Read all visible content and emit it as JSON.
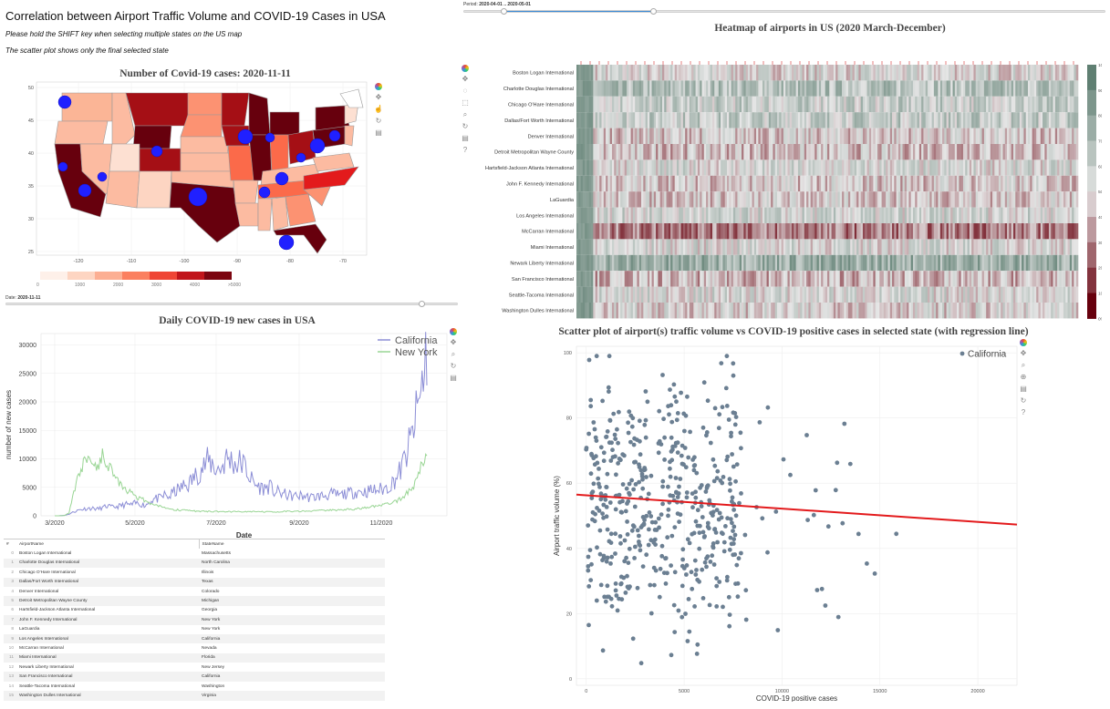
{
  "header": {
    "title": "Correlation between Airport Traffic Volume and COVID-19 Cases in USA",
    "note1": "Please hold the SHIFT key when selecting multiple states on the US map",
    "note2": "The scatter plot shows only the final selected state"
  },
  "map": {
    "title": "Number of Covid-19 cases: 2020-11-11",
    "lat_ticks": [
      "50",
      "45",
      "40",
      "35",
      "30",
      "25"
    ],
    "lon_ticks": [
      "-120",
      "-110",
      "-100",
      "-90",
      "-80",
      "-70"
    ],
    "colorbar_ticks": [
      "0",
      "1000",
      "2000",
      "3000",
      "4000",
      ">5000"
    ],
    "colorbar_colors": [
      "#fef0e9",
      "#fdd5c2",
      "#fcaf93",
      "#fb8060",
      "#ef4535",
      "#c1151b",
      "#7c0510"
    ],
    "date_label": "Date:",
    "date_value": "2020-11-11",
    "date_slider_fraction": 0.92
  },
  "period": {
    "label": "Period:",
    "value": "2020-04-01 .. 2020-05-01"
  },
  "daily": {
    "chart_data": {
      "type": "line",
      "title": "Daily COVID-19 new cases in USA",
      "xlabel": "Date",
      "ylabel": "number of new cases",
      "ylim": [
        0,
        32000
      ],
      "y_ticks": [
        "0",
        "5000",
        "10000",
        "15000",
        "20000",
        "25000",
        "30000"
      ],
      "x_ticks": [
        "3/2020",
        "5/2020",
        "7/2020",
        "9/2020",
        "11/2020"
      ],
      "legend_position": "top-right",
      "series": [
        {
          "name": "California",
          "color": "#8c8ed6",
          "values": [
            0,
            10,
            80,
            300,
            700,
            1000,
            1200,
            1300,
            1300,
            1200,
            1400,
            1700,
            1500,
            1600,
            1800,
            2000,
            1900,
            2200,
            2100,
            1800,
            2600,
            3000,
            3000,
            3600,
            3300,
            4200,
            4600,
            5200,
            5500,
            6500,
            7500,
            8500,
            9500,
            9200,
            8000,
            8600,
            10000,
            9800,
            9000,
            9500,
            8500,
            6600,
            5500,
            5000,
            4800,
            5200,
            4200,
            4100,
            3800,
            3600,
            3400,
            3500,
            3500,
            3300,
            3200,
            3400,
            3500,
            3600,
            3800,
            3700,
            3600,
            3900,
            4000,
            4200,
            4300,
            4200,
            4400,
            4500,
            4600,
            4700,
            5200,
            6000,
            7200,
            9000,
            11500,
            14500,
            18500,
            23000,
            29500
          ]
        },
        {
          "name": "New York",
          "color": "#99d594",
          "values": [
            0,
            0,
            50,
            500,
            4000,
            7000,
            9500,
            10000,
            9500,
            8500,
            10500,
            9500,
            8000,
            6500,
            5500,
            4500,
            4000,
            3500,
            3000,
            2800,
            2200,
            2000,
            1600,
            1400,
            1200,
            1100,
            1000,
            950,
            900,
            850,
            800,
            800,
            780,
            760,
            750,
            730,
            720,
            700,
            720,
            700,
            690,
            700,
            710,
            700,
            690,
            700,
            720,
            730,
            760,
            800,
            780,
            800,
            820,
            850,
            870,
            900,
            930,
            950,
            1000,
            1000,
            1050,
            1100,
            1150,
            1200,
            1300,
            1400,
            1500,
            1600,
            1700,
            1900,
            2100,
            2300,
            2700,
            3200,
            4200,
            5000,
            6500,
            9000,
            10500
          ]
        }
      ]
    }
  },
  "table": {
    "columns": [
      "#",
      "AirportName",
      "StateName"
    ],
    "rows": [
      [
        "0",
        "Boston Logan International",
        "Massachusetts"
      ],
      [
        "1",
        "Charlotte Douglas International",
        "North Carolina"
      ],
      [
        "2",
        "Chicago O'Hare International",
        "Illinois"
      ],
      [
        "3",
        "Dallas/Fort Worth International",
        "Texas"
      ],
      [
        "4",
        "Denver International",
        "Colorado"
      ],
      [
        "5",
        "Detroit Metropolitan Wayne County",
        "Michigan"
      ],
      [
        "6",
        "Hartsfield-Jackson Atlanta International",
        "Georgia"
      ],
      [
        "7",
        "John F. Kennedy International",
        "New York"
      ],
      [
        "8",
        "LaGuardia",
        "New York"
      ],
      [
        "9",
        "Los Angeles International",
        "California"
      ],
      [
        "10",
        "McCarran International",
        "Nevada"
      ],
      [
        "11",
        "Miami International",
        "Florida"
      ],
      [
        "12",
        "Newark Liberty International",
        "New Jersey"
      ],
      [
        "13",
        "San Francisco International",
        "California"
      ],
      [
        "14",
        "Seattle-Tacoma International",
        "Washington"
      ],
      [
        "15",
        "Washington Dulles International",
        "Virginia"
      ]
    ]
  },
  "heatmap": {
    "title": "Heatmap of airports in US (2020 March-December)",
    "airports": [
      "Boston Logan International",
      "Charlotte Douglas International",
      "Chicago O'Hare International",
      "Dallas/Fort Worth International",
      "Denver International",
      "Detroit Metropolitan Wayne County",
      "Hartsfield-Jackson Atlanta International",
      "John F. Kennedy International",
      "LaGuardia",
      "Los Angeles International",
      "McCarran International",
      "Miami International",
      "Newark Liberty International",
      "San Francisco International",
      "Seattle-Tacoma International",
      "Washington Dulles International"
    ],
    "row_bias": [
      0.0,
      0.35,
      0.2,
      0.25,
      -0.1,
      -0.15,
      0.05,
      -0.1,
      -0.1,
      0.1,
      -0.45,
      0.05,
      0.55,
      -0.2,
      0.05,
      -0.05
    ],
    "colorbar_ticks": [
      "100%",
      "90%",
      "80%",
      "70%",
      "60%",
      "50%",
      "40%",
      "30%",
      "20%",
      "10%",
      "0%"
    ],
    "colors": {
      "high": "#5f7f72",
      "mid": "#e6e6e6",
      "low": "#67000d"
    }
  },
  "scatter": {
    "chart_data": {
      "type": "scatter",
      "title": "Scatter plot of airport(s) traffic volume vs COVID-19 positive cases in selected state (with regression line)",
      "xlabel": "COVID-19 positive cases",
      "ylabel": "Airport traffic volume (%)",
      "xlim": [
        -500,
        22000
      ],
      "ylim": [
        -2,
        102
      ],
      "x_ticks": [
        "0",
        "5000",
        "10000",
        "15000",
        "20000"
      ],
      "y_ticks": [
        "0",
        "20",
        "40",
        "60",
        "80",
        "100"
      ],
      "legend_position": "top-right",
      "series": [
        {
          "name": "California",
          "color": "#6b7f92"
        }
      ],
      "regression": {
        "x": [
          -500,
          22000
        ],
        "y": [
          56.5,
          47.3
        ],
        "color": "#e31a1c"
      },
      "point_count": 520
    }
  }
}
